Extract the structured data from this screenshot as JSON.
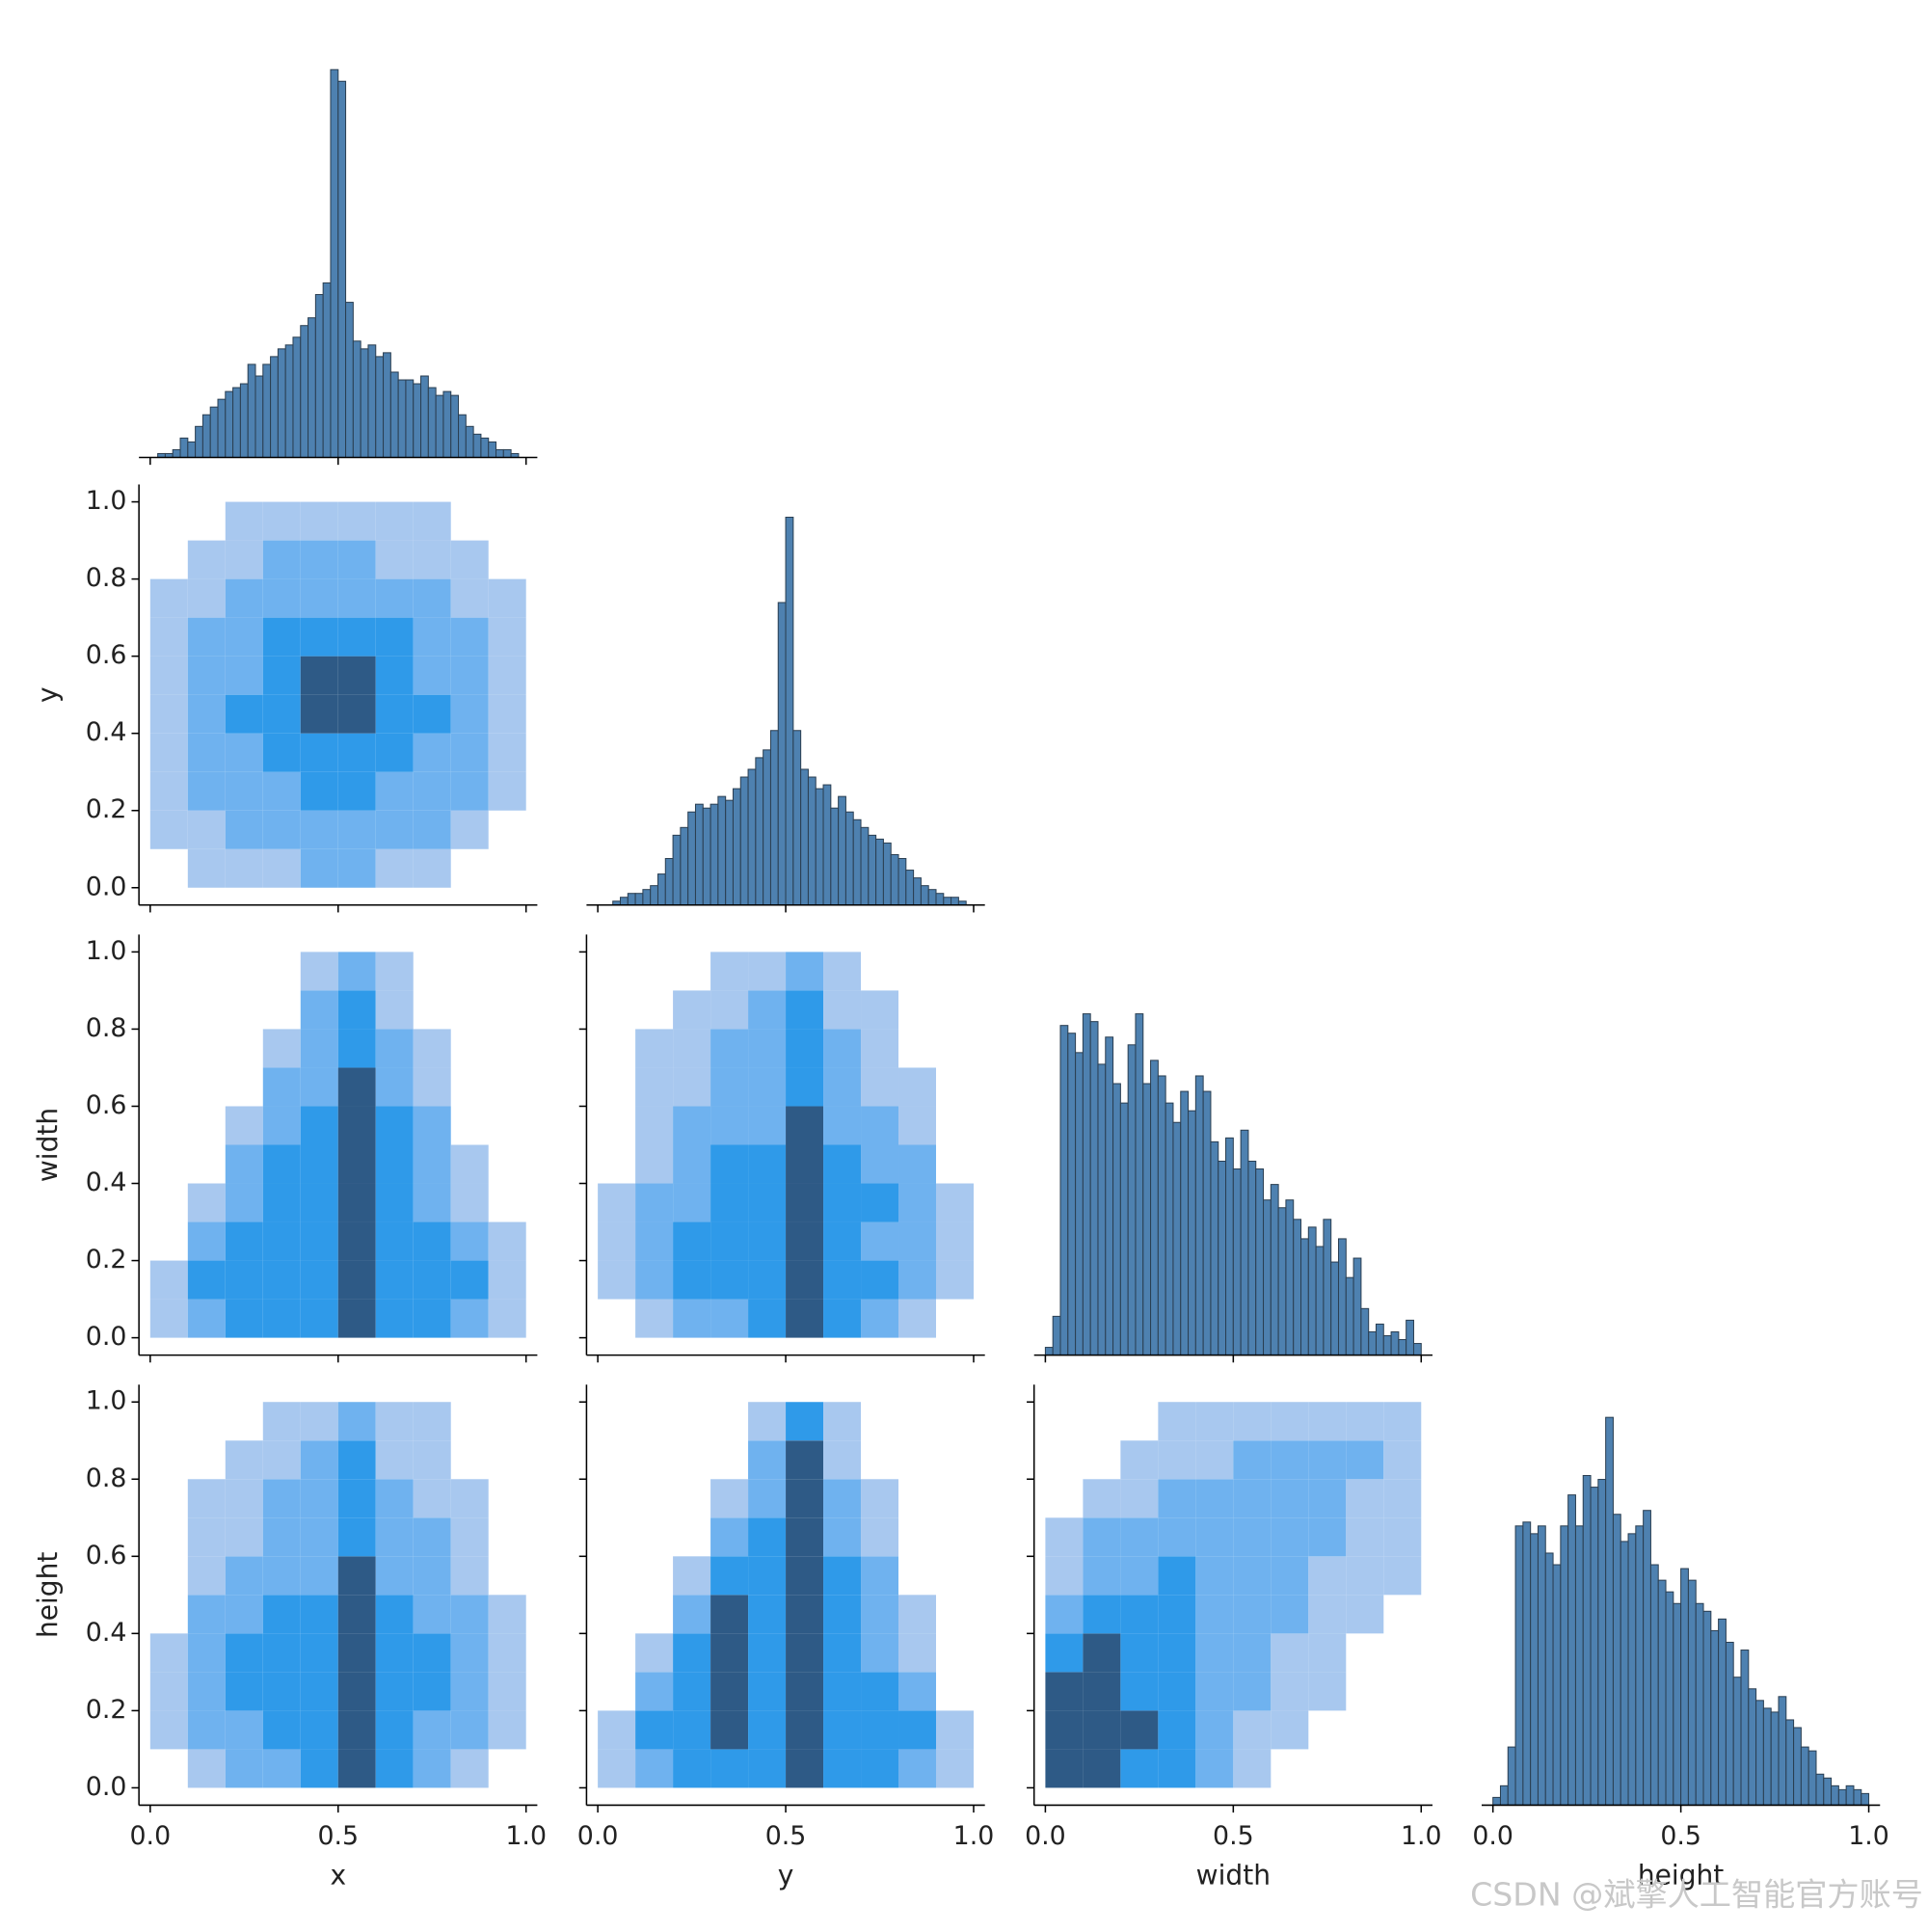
{
  "chart_data": {
    "type": "pairplot",
    "variables": [
      "x",
      "y",
      "width",
      "height"
    ],
    "xlim": [
      -0.03,
      1.03
    ],
    "ylim": [
      -0.045,
      1.045
    ],
    "xticks": [
      {
        "value": 0,
        "label": "0.0"
      },
      0.5,
      {
        "value": 1,
        "label": "1.0"
      }
    ],
    "yticks": [
      {
        "value": 0,
        "label": "0.0"
      },
      0.2,
      0.4,
      0.6,
      0.8,
      {
        "value": 1,
        "label": "1.0"
      }
    ],
    "hist_color": "#4e81b0",
    "hist_edge": "#2b3f52",
    "hist_ylim": [
      0,
      104
    ],
    "bins": [
      0,
      0.02,
      0.04,
      0.06,
      0.08,
      0.1,
      0.12,
      0.14,
      0.16,
      0.18,
      0.2,
      0.22,
      0.24,
      0.26,
      0.28,
      0.3,
      0.32,
      0.34,
      0.36,
      0.38,
      0.4,
      0.42,
      0.44,
      0.46,
      0.48,
      0.5,
      0.52,
      0.54,
      0.56,
      0.58,
      0.6,
      0.62,
      0.64,
      0.66,
      0.68,
      0.7,
      0.72,
      0.74,
      0.76,
      0.78,
      0.8,
      0.82,
      0.84,
      0.86,
      0.88,
      0.9,
      0.92,
      0.94,
      0.96,
      0.98,
      1.0
    ],
    "histograms": [
      {
        "var": 0,
        "counts": [
          0,
          1,
          1,
          2,
          5,
          4,
          8,
          11,
          13,
          15,
          17,
          18,
          19,
          24,
          21,
          24,
          26,
          28,
          29,
          31,
          34,
          36,
          42,
          45,
          100,
          97,
          40,
          30,
          28,
          29,
          26,
          27,
          22,
          20,
          20,
          19,
          21,
          18,
          16,
          17,
          16,
          11,
          8,
          6,
          5,
          4,
          2,
          2,
          1,
          0
        ]
      },
      {
        "var": 1,
        "counts": [
          0,
          0,
          1,
          2,
          3,
          3,
          4,
          5,
          8,
          12,
          18,
          20,
          24,
          26,
          25,
          26,
          28,
          27,
          30,
          33,
          35,
          38,
          40,
          45,
          78,
          100,
          45,
          35,
          33,
          30,
          31,
          25,
          28,
          24,
          22,
          20,
          18,
          17,
          16,
          13,
          12,
          9,
          7,
          5,
          4,
          3,
          2,
          2,
          1,
          0
        ]
      },
      {
        "var": 2,
        "counts": [
          2,
          10,
          85,
          83,
          78,
          88,
          86,
          75,
          82,
          70,
          65,
          80,
          88,
          70,
          76,
          72,
          65,
          60,
          68,
          63,
          72,
          68,
          55,
          50,
          56,
          48,
          58,
          50,
          48,
          40,
          44,
          38,
          40,
          35,
          30,
          33,
          28,
          35,
          24,
          30,
          20,
          25,
          12,
          6,
          8,
          5,
          6,
          4,
          9,
          3
        ]
      },
      {
        "var": 3,
        "counts": [
          2,
          5,
          15,
          72,
          73,
          70,
          72,
          65,
          62,
          72,
          80,
          72,
          85,
          82,
          84,
          100,
          75,
          68,
          70,
          72,
          76,
          62,
          58,
          55,
          52,
          61,
          58,
          52,
          50,
          45,
          48,
          42,
          33,
          40,
          30,
          27,
          25,
          24,
          28,
          22,
          20,
          15,
          14,
          8,
          7,
          5,
          4,
          5,
          4,
          3
        ]
      }
    ],
    "cmap": [
      "#a8c8ef",
      "#6fb2ef",
      "#2f9ae9",
      "#2e5a86"
    ],
    "bin_edges": [
      0,
      0.1,
      0.2,
      0.3,
      0.4,
      0.5,
      0.6,
      0.7,
      0.8,
      0.9,
      1.0
    ],
    "heatmaps": [
      {
        "row": 1,
        "col": 0,
        "counts": [
          [
            0,
            1,
            1,
            1,
            2,
            2,
            1,
            1,
            0,
            0
          ],
          [
            1,
            1,
            2,
            2,
            2,
            2,
            2,
            2,
            1,
            0
          ],
          [
            1,
            2,
            2,
            2,
            3,
            3,
            2,
            2,
            2,
            1
          ],
          [
            1,
            2,
            2,
            3,
            3,
            3,
            3,
            2,
            2,
            1
          ],
          [
            1,
            2,
            3,
            3,
            4,
            4,
            3,
            3,
            2,
            1
          ],
          [
            1,
            2,
            2,
            3,
            4,
            4,
            3,
            2,
            2,
            1
          ],
          [
            1,
            2,
            2,
            3,
            3,
            3,
            3,
            2,
            2,
            1
          ],
          [
            1,
            1,
            2,
            2,
            2,
            2,
            2,
            2,
            1,
            1
          ],
          [
            0,
            1,
            1,
            2,
            2,
            2,
            1,
            1,
            1,
            0
          ],
          [
            0,
            0,
            1,
            1,
            1,
            1,
            1,
            1,
            0,
            0
          ]
        ]
      },
      {
        "row": 2,
        "col": 0,
        "counts": [
          [
            1,
            2,
            3,
            3,
            3,
            4,
            3,
            3,
            2,
            1
          ],
          [
            1,
            3,
            3,
            3,
            3,
            4,
            3,
            3,
            3,
            1
          ],
          [
            0,
            2,
            3,
            3,
            3,
            4,
            3,
            3,
            2,
            1
          ],
          [
            0,
            1,
            2,
            3,
            3,
            4,
            3,
            2,
            1,
            0
          ],
          [
            0,
            0,
            2,
            3,
            3,
            4,
            3,
            2,
            1,
            0
          ],
          [
            0,
            0,
            1,
            2,
            3,
            4,
            3,
            2,
            0,
            0
          ],
          [
            0,
            0,
            0,
            2,
            2,
            4,
            2,
            1,
            0,
            0
          ],
          [
            0,
            0,
            0,
            1,
            2,
            3,
            2,
            1,
            0,
            0
          ],
          [
            0,
            0,
            0,
            0,
            2,
            3,
            1,
            0,
            0,
            0
          ],
          [
            0,
            0,
            0,
            0,
            1,
            2,
            1,
            0,
            0,
            0
          ]
        ]
      },
      {
        "row": 2,
        "col": 1,
        "counts": [
          [
            0,
            1,
            2,
            2,
            3,
            4,
            3,
            2,
            1,
            0
          ],
          [
            1,
            2,
            3,
            3,
            3,
            4,
            3,
            3,
            2,
            1
          ],
          [
            1,
            2,
            3,
            3,
            3,
            4,
            3,
            2,
            2,
            1
          ],
          [
            1,
            2,
            2,
            3,
            3,
            4,
            3,
            3,
            2,
            1
          ],
          [
            0,
            1,
            2,
            3,
            3,
            4,
            3,
            2,
            2,
            0
          ],
          [
            0,
            1,
            2,
            2,
            2,
            4,
            2,
            2,
            1,
            0
          ],
          [
            0,
            1,
            1,
            2,
            2,
            3,
            2,
            1,
            1,
            0
          ],
          [
            0,
            1,
            1,
            2,
            2,
            3,
            2,
            1,
            0,
            0
          ],
          [
            0,
            0,
            1,
            1,
            2,
            3,
            1,
            1,
            0,
            0
          ],
          [
            0,
            0,
            0,
            1,
            1,
            2,
            1,
            0,
            0,
            0
          ]
        ]
      },
      {
        "row": 3,
        "col": 0,
        "counts": [
          [
            0,
            1,
            2,
            2,
            3,
            4,
            3,
            2,
            1,
            0
          ],
          [
            1,
            2,
            2,
            3,
            3,
            4,
            3,
            2,
            2,
            1
          ],
          [
            1,
            2,
            3,
            3,
            3,
            4,
            3,
            3,
            2,
            1
          ],
          [
            1,
            2,
            3,
            3,
            3,
            4,
            3,
            3,
            2,
            1
          ],
          [
            0,
            2,
            2,
            3,
            3,
            4,
            3,
            2,
            2,
            1
          ],
          [
            0,
            1,
            2,
            2,
            2,
            4,
            2,
            2,
            1,
            0
          ],
          [
            0,
            1,
            1,
            2,
            2,
            3,
            2,
            2,
            1,
            0
          ],
          [
            0,
            1,
            1,
            2,
            2,
            3,
            2,
            1,
            1,
            0
          ],
          [
            0,
            0,
            1,
            1,
            2,
            3,
            1,
            1,
            0,
            0
          ],
          [
            0,
            0,
            0,
            1,
            1,
            2,
            1,
            1,
            0,
            0
          ]
        ]
      },
      {
        "row": 3,
        "col": 1,
        "counts": [
          [
            1,
            2,
            3,
            3,
            3,
            4,
            3,
            3,
            2,
            1
          ],
          [
            1,
            3,
            3,
            4,
            3,
            4,
            3,
            3,
            3,
            1
          ],
          [
            0,
            2,
            3,
            4,
            3,
            4,
            3,
            3,
            2,
            0
          ],
          [
            0,
            1,
            3,
            4,
            3,
            4,
            3,
            2,
            1,
            0
          ],
          [
            0,
            0,
            2,
            4,
            3,
            4,
            3,
            2,
            1,
            0
          ],
          [
            0,
            0,
            1,
            3,
            3,
            4,
            3,
            2,
            0,
            0
          ],
          [
            0,
            0,
            0,
            2,
            3,
            4,
            2,
            1,
            0,
            0
          ],
          [
            0,
            0,
            0,
            1,
            2,
            4,
            2,
            1,
            0,
            0
          ],
          [
            0,
            0,
            0,
            0,
            2,
            4,
            1,
            0,
            0,
            0
          ],
          [
            0,
            0,
            0,
            0,
            1,
            3,
            1,
            0,
            0,
            0
          ]
        ]
      },
      {
        "row": 3,
        "col": 2,
        "counts": [
          [
            4,
            4,
            3,
            3,
            2,
            1,
            0,
            0,
            0,
            0
          ],
          [
            4,
            4,
            4,
            3,
            2,
            1,
            1,
            0,
            0,
            0
          ],
          [
            4,
            4,
            3,
            3,
            2,
            2,
            1,
            1,
            0,
            0
          ],
          [
            3,
            4,
            3,
            3,
            2,
            2,
            1,
            1,
            0,
            0
          ],
          [
            2,
            3,
            3,
            3,
            2,
            2,
            2,
            1,
            1,
            0
          ],
          [
            1,
            2,
            2,
            3,
            2,
            2,
            2,
            1,
            1,
            1
          ],
          [
            1,
            2,
            2,
            2,
            2,
            2,
            2,
            2,
            1,
            1
          ],
          [
            0,
            1,
            1,
            2,
            2,
            2,
            2,
            2,
            1,
            1
          ],
          [
            0,
            0,
            1,
            1,
            1,
            2,
            2,
            2,
            2,
            1
          ],
          [
            0,
            0,
            0,
            1,
            1,
            1,
            1,
            1,
            1,
            1
          ]
        ]
      }
    ],
    "watermark": "CSDN @斌擎人工智能官方账号"
  }
}
